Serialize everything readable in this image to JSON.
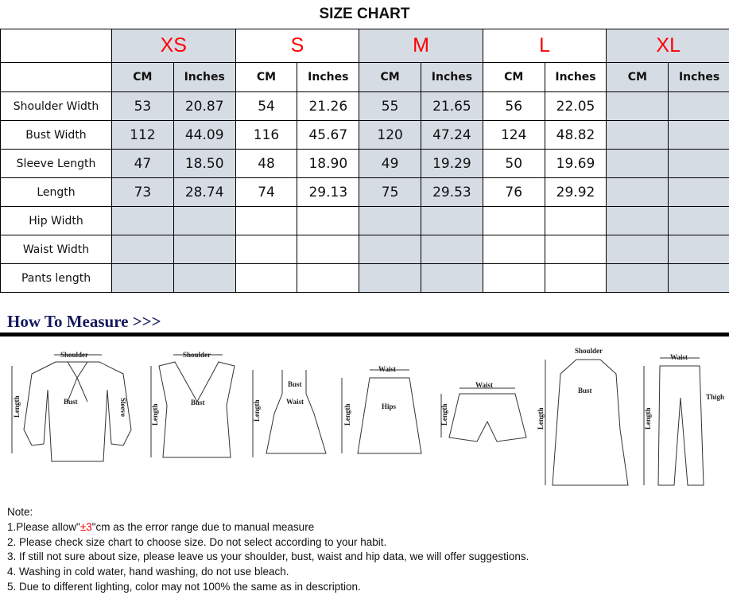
{
  "title": "SIZE CHART",
  "sizes": [
    "XS",
    "S",
    "M",
    "L",
    "XL"
  ],
  "units": [
    "CM",
    "Inches"
  ],
  "rows": [
    {
      "label": "Shoulder Width",
      "values": [
        "53",
        "20.87",
        "54",
        "21.26",
        "55",
        "21.65",
        "56",
        "22.05",
        "",
        ""
      ]
    },
    {
      "label": "Bust Width",
      "values": [
        "112",
        "44.09",
        "116",
        "45.67",
        "120",
        "47.24",
        "124",
        "48.82",
        "",
        ""
      ]
    },
    {
      "label": "Sleeve Length",
      "values": [
        "47",
        "18.50",
        "48",
        "18.90",
        "49",
        "19.29",
        "50",
        "19.69",
        "",
        ""
      ]
    },
    {
      "label": "Length",
      "values": [
        "73",
        "28.74",
        "74",
        "29.13",
        "75",
        "29.53",
        "76",
        "29.92",
        "",
        ""
      ]
    },
    {
      "label": "Hip Width",
      "values": [
        "",
        "",
        "",
        "",
        "",
        "",
        "",
        "",
        "",
        ""
      ]
    },
    {
      "label": "Waist Width",
      "values": [
        "",
        "",
        "",
        "",
        "",
        "",
        "",
        "",
        "",
        ""
      ]
    },
    {
      "label": "Pants length",
      "values": [
        "",
        "",
        "",
        "",
        "",
        "",
        "",
        "",
        "",
        ""
      ]
    }
  ],
  "shaded_color": "#d6dce4",
  "size_color": "#ff0000",
  "how_to_measure": "How To Measure >>>",
  "illustration_labels": {
    "shoulder": "Shoulder",
    "bust": "Bust",
    "sleeve": "Sleeve",
    "length": "Length",
    "waist": "Waist",
    "hips": "Hips",
    "thigh": "Thigh"
  },
  "notes": {
    "heading": "Note:",
    "n1_pre": "1.Please allow\"",
    "n1_red": "±3",
    "n1_post": "\"cm as the error range due to manual measure",
    "n2": "2. Please check size chart to choose size. Do not select according to your habit.",
    "n3": "3. If still not sure about size, please leave us your shoulder, bust, waist and hip data, we will offer suggestions.",
    "n4": "4. Washing in cold water, hand washing, do not use bleach.",
    "n5": "5. Due to different lighting, color may not 100% the same as in description."
  }
}
